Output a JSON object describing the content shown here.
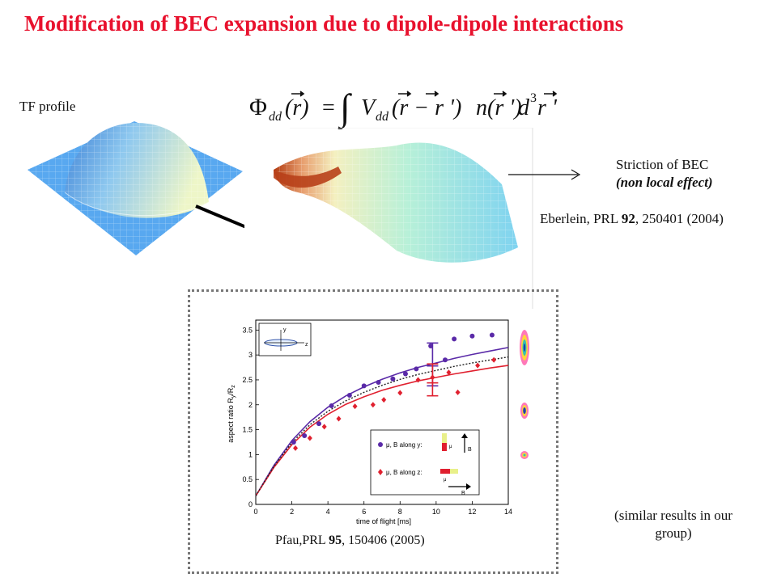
{
  "slide": {
    "title": "Modification of BEC expansion due to dipole-dipole interactions",
    "tf_profile_label": "TF profile",
    "formula": {
      "lhs_symbol": "Φ",
      "lhs_sub": "dd",
      "lhs_arg": "(r)",
      "equals": "=",
      "integral": "∫",
      "V": "V",
      "V_sub": "dd",
      "V_arg": "(r − r ')",
      "n": "n",
      "n_arg": "(r ')",
      "d": "d",
      "d_sup": "3",
      "d_arg": "r '"
    },
    "striction_line1": "Striction of BEC",
    "striction_line2": "(non local effect)",
    "eberlein_ref_prefix": "Eberlein, PRL ",
    "eberlein_ref_volume": "92",
    "eberlein_ref_suffix": ", 250401 (2004)",
    "pfau_ref_prefix": "Pfau,PRL ",
    "pfau_ref_volume": "95",
    "pfau_ref_suffix": ", 150406 (2005)",
    "similar_results": "(similar results in our group)"
  },
  "chart_data": {
    "type": "line",
    "xlabel": "time of flight [ms]",
    "ylabel": "aspect ratio R",
    "ylabel_sub": "y",
    "ylabel_tail": "/R",
    "ylabel_sub2": "z",
    "xlim": [
      0,
      14
    ],
    "ylim": [
      0,
      3.7
    ],
    "xticks": [
      "0",
      "2",
      "4",
      "6",
      "8",
      "10",
      "12",
      "14"
    ],
    "yticks": [
      "0",
      "0.5",
      "1",
      "1.5",
      "2",
      "2.5",
      "3",
      "3.5"
    ],
    "legend_y": "μ, B along y:",
    "legend_z": "μ, B along z:",
    "legend_mu": "μ",
    "legend_B": "B",
    "inset_y": "y",
    "inset_z": "z",
    "colors": {
      "y": "#5a2aa8",
      "z": "#e0202f",
      "theory": "#222222"
    },
    "series": [
      {
        "name": "μ, B along y:",
        "x": [
          2.1,
          2.7,
          3.5,
          4.2,
          5.2,
          6.0,
          6.8,
          7.6,
          8.3,
          8.9,
          9.7,
          10.5,
          11.0,
          12.0,
          13.1
        ],
        "y": [
          1.25,
          1.38,
          1.62,
          1.98,
          2.19,
          2.38,
          2.45,
          2.52,
          2.62,
          2.72,
          3.18,
          2.9,
          3.32,
          3.38,
          3.4
        ]
      },
      {
        "name": "μ, B along z:",
        "x": [
          2.2,
          3.0,
          3.8,
          4.6,
          5.5,
          6.5,
          7.1,
          8.0,
          9.0,
          9.8,
          10.7,
          11.2,
          12.3,
          13.2
        ],
        "y": [
          1.13,
          1.33,
          1.56,
          1.72,
          1.97,
          2.0,
          2.1,
          2.24,
          2.5,
          2.55,
          2.65,
          2.25,
          2.79,
          2.9
        ]
      }
    ],
    "curves": [
      {
        "x": [
          0,
          1,
          2,
          3,
          4,
          5,
          6,
          7,
          8,
          9,
          10,
          11,
          12,
          13,
          14
        ],
        "y": [
          0.17,
          0.78,
          1.28,
          1.66,
          1.95,
          2.18,
          2.36,
          2.51,
          2.64,
          2.75,
          2.84,
          2.93,
          3.01,
          3.08,
          3.15
        ]
      },
      {
        "x": [
          0,
          1,
          2,
          3,
          4,
          5,
          6,
          7,
          8,
          9,
          10,
          11,
          12,
          13,
          14
        ],
        "y": [
          0.17,
          0.74,
          1.2,
          1.55,
          1.81,
          2.01,
          2.16,
          2.29,
          2.39,
          2.48,
          2.55,
          2.62,
          2.68,
          2.74,
          2.79
        ]
      },
      {
        "x": [
          0,
          1,
          2,
          3,
          4,
          5,
          6,
          7,
          8,
          9,
          10,
          11,
          12,
          13,
          14
        ],
        "y": [
          0.17,
          0.76,
          1.24,
          1.6,
          1.87,
          2.08,
          2.25,
          2.39,
          2.51,
          2.61,
          2.69,
          2.77,
          2.84,
          2.9,
          2.96
        ]
      }
    ],
    "error_bars": [
      {
        "x": 9.8,
        "y": 2.78,
        "low": 2.38,
        "high": 3.24
      },
      {
        "x": 9.8,
        "y": 2.44,
        "low": 2.18,
        "high": 2.82
      }
    ]
  }
}
